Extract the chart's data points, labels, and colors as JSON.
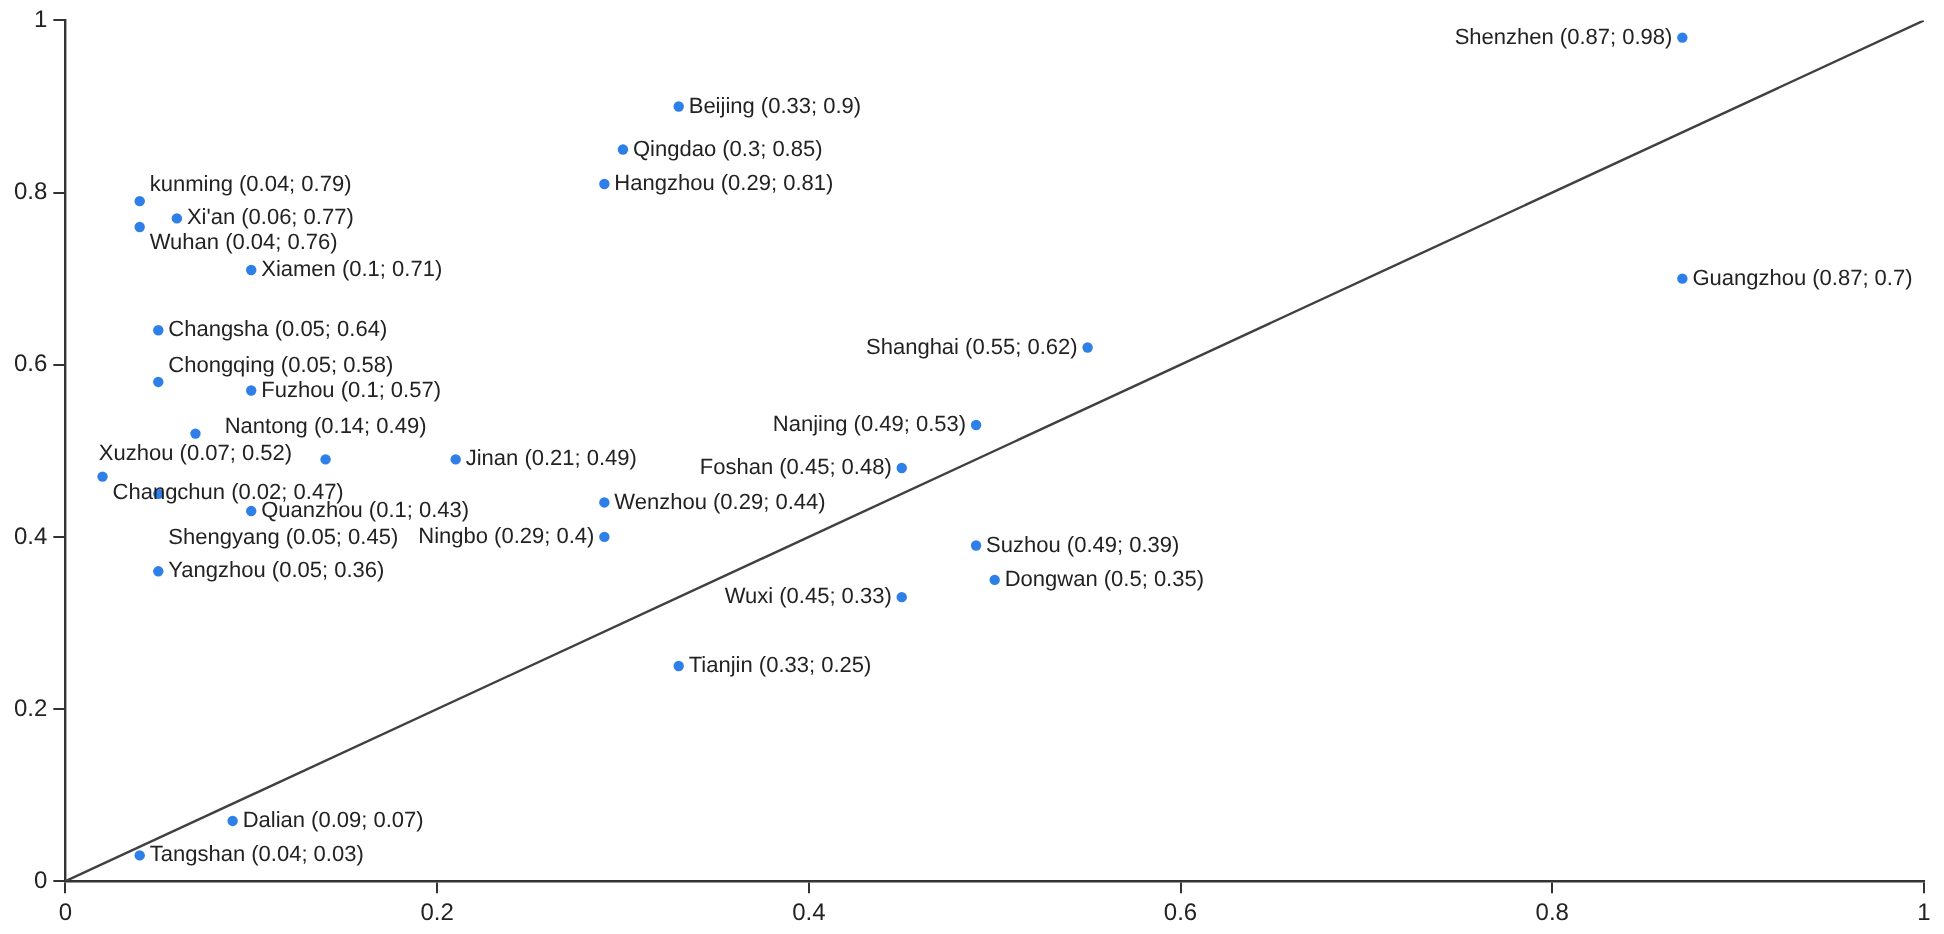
{
  "chart_data": {
    "type": "scatter",
    "xlim": [
      0,
      1
    ],
    "ylim": [
      0,
      1
    ],
    "xticks": [
      0,
      0.2,
      0.4,
      0.6,
      0.8,
      1
    ],
    "yticks": [
      0,
      0.2,
      0.4,
      0.6,
      0.8,
      1
    ],
    "grid": false,
    "legend": false,
    "series": [
      {
        "type": "scatter",
        "marker": "circle",
        "color": "#2f7fe8",
        "x": [
          0.87,
          0.87,
          0.33,
          0.3,
          0.29,
          0.55,
          0.49,
          0.45,
          0.49,
          0.5,
          0.45,
          0.33,
          0.29,
          0.29,
          0.21,
          0.14,
          0.07,
          0.04,
          0.06,
          0.1,
          0.04,
          0.05,
          0.05,
          0.1,
          0.02,
          0.05,
          0.1,
          0.05,
          0.09,
          0.04
        ],
        "values": [
          0.98,
          0.7,
          0.9,
          0.85,
          0.81,
          0.62,
          0.53,
          0.48,
          0.39,
          0.35,
          0.33,
          0.25,
          0.44,
          0.4,
          0.49,
          0.49,
          0.52,
          0.79,
          0.77,
          0.71,
          0.76,
          0.64,
          0.58,
          0.57,
          0.47,
          0.45,
          0.43,
          0.36,
          0.07,
          0.03
        ],
        "value_labels": [
          "Shenzhen (0.87; 0.98)",
          "Guangzhou (0.87; 0.7)",
          "Beijing (0.33; 0.9)",
          "Qingdao (0.3; 0.85)",
          "Hangzhou (0.29; 0.81)",
          "Shanghai (0.55; 0.62)",
          "Nanjing (0.49; 0.53)",
          "Foshan (0.45; 0.48)",
          "Suzhou (0.49; 0.39)",
          "Dongwan (0.5; 0.35)",
          "Wuxi (0.45; 0.33)",
          "Tianjin (0.33; 0.25)",
          "Wenzhou (0.29; 0.44)",
          "Ningbo (0.29; 0.4)",
          "Jinan (0.21; 0.49)",
          "Nantong (0.14; 0.49)",
          "Xuzhou (0.07; 0.52)",
          "kunming (0.04; 0.79)",
          "Xi'an (0.06; 0.77)",
          "Xiamen (0.1; 0.71)",
          "Wuhan (0.04; 0.76)",
          "Changsha (0.05; 0.64)",
          "Chongqing (0.05; 0.58)",
          "Fuzhou (0.1; 0.57)",
          "Changchun (0.02; 0.47)",
          "Shengyang (0.05; 0.45)",
          "Quanzhou (0.1; 0.43)",
          "Yangzhou (0.05; 0.36)",
          "Dalian (0.09; 0.07)",
          "Tangshan (0.04; 0.03)"
        ]
      },
      {
        "type": "line",
        "color": "#404040",
        "x": [
          0,
          1
        ],
        "values": [
          0,
          1
        ]
      }
    ]
  }
}
